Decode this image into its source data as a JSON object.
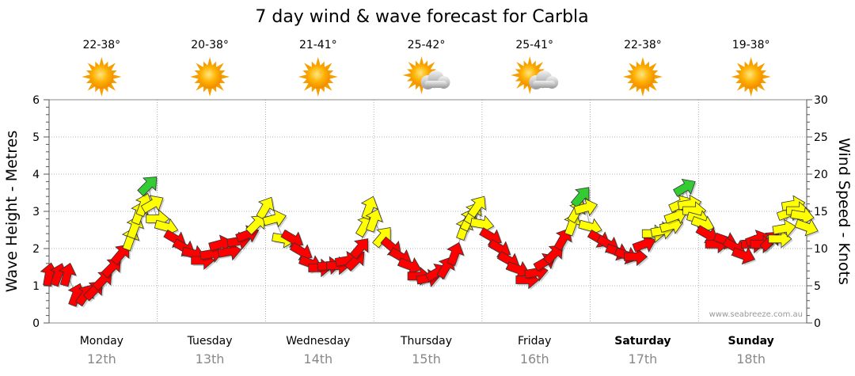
{
  "chart_data": {
    "type": "line",
    "title": "7 day wind & wave forecast for Carbla",
    "ylabel_left": "Wave Height - Metres",
    "ylabel_right": "Wind Speed - Knots",
    "ylim_left": [
      0,
      6
    ],
    "ylim_right": [
      0,
      30
    ],
    "yticks_left": [
      "0",
      "1",
      "2",
      "3",
      "4",
      "5",
      "6"
    ],
    "yticks_right": [
      "0",
      "5",
      "10",
      "15",
      "20",
      "25",
      "30"
    ],
    "credit": "www.seabreeze.com.au",
    "colors": {
      "calm": "#ffff00",
      "moderate": "#ff0000",
      "light": "#33cc33",
      "trace": "#aaaaaa"
    },
    "days": [
      {
        "label": "Monday",
        "date": "12th",
        "temp": "22-38°",
        "weather": "sunny",
        "weekend": false
      },
      {
        "label": "Tuesday",
        "date": "13th",
        "temp": "20-38°",
        "weather": "sunny",
        "weekend": false
      },
      {
        "label": "Wednesday",
        "date": "14th",
        "temp": "21-41°",
        "weather": "sunny",
        "weekend": false
      },
      {
        "label": "Thursday",
        "date": "15th",
        "temp": "25-42°",
        "weather": "partly-cloudy",
        "weekend": false
      },
      {
        "label": "Friday",
        "date": "16th",
        "temp": "25-41°",
        "weather": "partly-cloudy",
        "weekend": false
      },
      {
        "label": "Saturday",
        "date": "17th",
        "temp": "22-38°",
        "weather": "sunny",
        "weekend": true
      },
      {
        "label": "Sunday",
        "date": "18th",
        "temp": "19-38°",
        "weather": "sunny",
        "weekend": true
      }
    ],
    "wind_series": {
      "name": "Wind Speed",
      "points": [
        {
          "day": 0,
          "hour": 0,
          "speed": 6.5,
          "dir": 80,
          "color": "#ff0000"
        },
        {
          "day": 0,
          "hour": 2,
          "speed": 6.5,
          "dir": 70,
          "color": "#ff0000"
        },
        {
          "day": 0,
          "hour": 4,
          "speed": 6.5,
          "dir": 75,
          "color": "#ff0000"
        },
        {
          "day": 0,
          "hour": 6,
          "speed": 3.8,
          "dir": 70,
          "color": "#ff0000"
        },
        {
          "day": 0,
          "hour": 8,
          "speed": 3.8,
          "dir": 55,
          "color": "#ff0000"
        },
        {
          "day": 0,
          "hour": 10,
          "speed": 4.4,
          "dir": 45,
          "color": "#ff0000"
        },
        {
          "day": 0,
          "hour": 12,
          "speed": 5.8,
          "dir": 45,
          "color": "#ff0000"
        },
        {
          "day": 0,
          "hour": 14,
          "speed": 7.5,
          "dir": 45,
          "color": "#ff0000"
        },
        {
          "day": 0,
          "hour": 16,
          "speed": 9.3,
          "dir": 50,
          "color": "#ff0000"
        },
        {
          "day": 0,
          "hour": 18,
          "speed": 11.3,
          "dir": 70,
          "color": "#ffff00"
        },
        {
          "day": 0,
          "hour": 19,
          "speed": 12.9,
          "dir": 70,
          "color": "#ffff00"
        },
        {
          "day": 0,
          "hour": 20,
          "speed": 14.8,
          "dir": 70,
          "color": "#ffff00"
        },
        {
          "day": 0,
          "hour": 21,
          "speed": 15.9,
          "dir": 70,
          "color": "#ffff00"
        },
        {
          "day": 0,
          "hour": 22,
          "speed": 18.5,
          "dir": 45,
          "color": "#33cc33"
        },
        {
          "day": 0,
          "hour": 23,
          "speed": 16.0,
          "dir": 30,
          "color": "#ffff00"
        },
        {
          "day": 1,
          "hour": 0,
          "speed": 14.0,
          "dir": 0,
          "color": "#ffff00"
        },
        {
          "day": 1,
          "hour": 2,
          "speed": 12.9,
          "dir": 345,
          "color": "#ffff00"
        },
        {
          "day": 1,
          "hour": 4,
          "speed": 11.3,
          "dir": 330,
          "color": "#ff0000"
        },
        {
          "day": 1,
          "hour": 6,
          "speed": 10.1,
          "dir": 330,
          "color": "#ff0000"
        },
        {
          "day": 1,
          "hour": 8,
          "speed": 9.3,
          "dir": 345,
          "color": "#ff0000"
        },
        {
          "day": 1,
          "hour": 10,
          "speed": 8.4,
          "dir": 0,
          "color": "#ff0000"
        },
        {
          "day": 1,
          "hour": 12,
          "speed": 9.3,
          "dir": 10,
          "color": "#ff0000"
        },
        {
          "day": 1,
          "hour": 14,
          "speed": 10.6,
          "dir": 15,
          "color": "#ff0000"
        },
        {
          "day": 1,
          "hour": 16,
          "speed": 9.6,
          "dir": 10,
          "color": "#ff0000"
        },
        {
          "day": 1,
          "hour": 18,
          "speed": 11.0,
          "dir": 10,
          "color": "#ff0000"
        },
        {
          "day": 1,
          "hour": 20,
          "speed": 11.9,
          "dir": 20,
          "color": "#ff0000"
        },
        {
          "day": 1,
          "hour": 22,
          "speed": 13.3,
          "dir": 45,
          "color": "#ffff00"
        },
        {
          "day": 2,
          "hour": 0,
          "speed": 15.5,
          "dir": 60,
          "color": "#ffff00"
        },
        {
          "day": 2,
          "hour": 2,
          "speed": 14.0,
          "dir": 15,
          "color": "#ffff00"
        },
        {
          "day": 2,
          "hour": 4,
          "speed": 11.3,
          "dir": 350,
          "color": "#ffff00"
        },
        {
          "day": 2,
          "hour": 6,
          "speed": 11.3,
          "dir": 330,
          "color": "#ff0000"
        },
        {
          "day": 2,
          "hour": 8,
          "speed": 9.6,
          "dir": 330,
          "color": "#ff0000"
        },
        {
          "day": 2,
          "hour": 10,
          "speed": 8.0,
          "dir": 340,
          "color": "#ff0000"
        },
        {
          "day": 2,
          "hour": 12,
          "speed": 7.4,
          "dir": 0,
          "color": "#ff0000"
        },
        {
          "day": 2,
          "hour": 14,
          "speed": 7.7,
          "dir": 5,
          "color": "#ff0000"
        },
        {
          "day": 2,
          "hour": 16,
          "speed": 7.7,
          "dir": 0,
          "color": "#ff0000"
        },
        {
          "day": 2,
          "hour": 18,
          "speed": 8.4,
          "dir": 10,
          "color": "#ff0000"
        },
        {
          "day": 2,
          "hour": 20,
          "speed": 8.4,
          "dir": 45,
          "color": "#ff0000"
        },
        {
          "day": 2,
          "hour": 21,
          "speed": 10.1,
          "dir": 50,
          "color": "#ff0000"
        },
        {
          "day": 2,
          "hour": 22,
          "speed": 13.1,
          "dir": 60,
          "color": "#ffff00"
        },
        {
          "day": 2,
          "hour": 23,
          "speed": 15.5,
          "dir": 70,
          "color": "#ffff00"
        },
        {
          "day": 3,
          "hour": 0,
          "speed": 13.8,
          "dir": 70,
          "color": "#ffff00"
        },
        {
          "day": 3,
          "hour": 2,
          "speed": 11.6,
          "dir": 50,
          "color": "#ffff00"
        },
        {
          "day": 3,
          "hour": 4,
          "speed": 10.2,
          "dir": 320,
          "color": "#ff0000"
        },
        {
          "day": 3,
          "hour": 6,
          "speed": 8.9,
          "dir": 330,
          "color": "#ff0000"
        },
        {
          "day": 3,
          "hour": 8,
          "speed": 7.7,
          "dir": 340,
          "color": "#ff0000"
        },
        {
          "day": 3,
          "hour": 10,
          "speed": 6.3,
          "dir": 0,
          "color": "#ff0000"
        },
        {
          "day": 3,
          "hour": 12,
          "speed": 6.0,
          "dir": 10,
          "color": "#ff0000"
        },
        {
          "day": 3,
          "hour": 14,
          "speed": 6.8,
          "dir": 30,
          "color": "#ff0000"
        },
        {
          "day": 3,
          "hour": 16,
          "speed": 7.5,
          "dir": 60,
          "color": "#ff0000"
        },
        {
          "day": 3,
          "hour": 18,
          "speed": 9.3,
          "dir": 70,
          "color": "#ff0000"
        },
        {
          "day": 3,
          "hour": 20,
          "speed": 12.7,
          "dir": 70,
          "color": "#ffff00"
        },
        {
          "day": 3,
          "hour": 21,
          "speed": 13.9,
          "dir": 65,
          "color": "#ffff00"
        },
        {
          "day": 3,
          "hour": 22,
          "speed": 14.8,
          "dir": 60,
          "color": "#ffff00"
        },
        {
          "day": 3,
          "hour": 23,
          "speed": 15.7,
          "dir": 55,
          "color": "#ffff00"
        },
        {
          "day": 4,
          "hour": 0,
          "speed": 13.3,
          "dir": 350,
          "color": "#ffff00"
        },
        {
          "day": 4,
          "hour": 2,
          "speed": 11.6,
          "dir": 330,
          "color": "#ff0000"
        },
        {
          "day": 4,
          "hour": 4,
          "speed": 10.0,
          "dir": 330,
          "color": "#ff0000"
        },
        {
          "day": 4,
          "hour": 6,
          "speed": 8.4,
          "dir": 330,
          "color": "#ff0000"
        },
        {
          "day": 4,
          "hour": 8,
          "speed": 7.2,
          "dir": 340,
          "color": "#ff0000"
        },
        {
          "day": 4,
          "hour": 10,
          "speed": 5.8,
          "dir": 0,
          "color": "#ff0000"
        },
        {
          "day": 4,
          "hour": 12,
          "speed": 6.8,
          "dir": 10,
          "color": "#ff0000"
        },
        {
          "day": 4,
          "hour": 14,
          "speed": 8.2,
          "dir": 30,
          "color": "#ff0000"
        },
        {
          "day": 4,
          "hour": 16,
          "speed": 9.3,
          "dir": 45,
          "color": "#ff0000"
        },
        {
          "day": 4,
          "hour": 18,
          "speed": 11.3,
          "dir": 60,
          "color": "#ff0000"
        },
        {
          "day": 4,
          "hour": 20,
          "speed": 13.3,
          "dir": 70,
          "color": "#ffff00"
        },
        {
          "day": 4,
          "hour": 21,
          "speed": 15.0,
          "dir": 60,
          "color": "#ffff00"
        },
        {
          "day": 4,
          "hour": 22,
          "speed": 17.0,
          "dir": 50,
          "color": "#33cc33"
        },
        {
          "day": 4,
          "hour": 23,
          "speed": 15.5,
          "dir": 15,
          "color": "#ffff00"
        },
        {
          "day": 5,
          "hour": 0,
          "speed": 12.9,
          "dir": 345,
          "color": "#ffff00"
        },
        {
          "day": 5,
          "hour": 2,
          "speed": 11.3,
          "dir": 330,
          "color": "#ff0000"
        },
        {
          "day": 5,
          "hour": 4,
          "speed": 10.6,
          "dir": 330,
          "color": "#ff0000"
        },
        {
          "day": 5,
          "hour": 6,
          "speed": 9.6,
          "dir": 340,
          "color": "#ff0000"
        },
        {
          "day": 5,
          "hour": 8,
          "speed": 9.1,
          "dir": 340,
          "color": "#ff0000"
        },
        {
          "day": 5,
          "hour": 10,
          "speed": 8.9,
          "dir": 0,
          "color": "#ff0000"
        },
        {
          "day": 5,
          "hour": 12,
          "speed": 10.6,
          "dir": 20,
          "color": "#ff0000"
        },
        {
          "day": 5,
          "hour": 14,
          "speed": 12.0,
          "dir": 0,
          "color": "#ffff00"
        },
        {
          "day": 5,
          "hour": 16,
          "speed": 12.4,
          "dir": 10,
          "color": "#ffff00"
        },
        {
          "day": 5,
          "hour": 18,
          "speed": 13.1,
          "dir": 15,
          "color": "#ffff00"
        },
        {
          "day": 5,
          "hour": 19,
          "speed": 14.4,
          "dir": 20,
          "color": "#ffff00"
        },
        {
          "day": 5,
          "hour": 20,
          "speed": 16.0,
          "dir": 25,
          "color": "#ffff00"
        },
        {
          "day": 5,
          "hour": 21,
          "speed": 18.2,
          "dir": 30,
          "color": "#33cc33"
        },
        {
          "day": 5,
          "hour": 22,
          "speed": 16.0,
          "dir": 10,
          "color": "#ffff00"
        },
        {
          "day": 5,
          "hour": 23,
          "speed": 15.1,
          "dir": 0,
          "color": "#ffff00"
        },
        {
          "day": 6,
          "hour": 0,
          "speed": 14.0,
          "dir": 345,
          "color": "#ffff00"
        },
        {
          "day": 6,
          "hour": 1,
          "speed": 13.3,
          "dir": 340,
          "color": "#ffff00"
        },
        {
          "day": 6,
          "hour": 2,
          "speed": 11.9,
          "dir": 330,
          "color": "#ff0000"
        },
        {
          "day": 6,
          "hour": 4,
          "speed": 10.6,
          "dir": 0,
          "color": "#ff0000"
        },
        {
          "day": 6,
          "hour": 6,
          "speed": 11.1,
          "dir": 340,
          "color": "#ff0000"
        },
        {
          "day": 6,
          "hour": 8,
          "speed": 10.2,
          "dir": 330,
          "color": "#ff0000"
        },
        {
          "day": 6,
          "hour": 10,
          "speed": 9.1,
          "dir": 340,
          "color": "#ff0000"
        },
        {
          "day": 6,
          "hour": 12,
          "speed": 10.6,
          "dir": 0,
          "color": "#ff0000"
        },
        {
          "day": 6,
          "hour": 13,
          "speed": 11.3,
          "dir": 20,
          "color": "#ff0000"
        },
        {
          "day": 6,
          "hour": 14,
          "speed": 10.6,
          "dir": 0,
          "color": "#ff0000"
        },
        {
          "day": 6,
          "hour": 16,
          "speed": 11.1,
          "dir": 45,
          "color": "#ff0000"
        },
        {
          "day": 6,
          "hour": 18,
          "speed": 11.3,
          "dir": 0,
          "color": "#ffff00"
        },
        {
          "day": 6,
          "hour": 19,
          "speed": 12.7,
          "dir": 10,
          "color": "#ffff00"
        },
        {
          "day": 6,
          "hour": 20,
          "speed": 14.8,
          "dir": 20,
          "color": "#ffff00"
        },
        {
          "day": 6,
          "hour": 21,
          "speed": 15.9,
          "dir": 10,
          "color": "#ffff00"
        },
        {
          "day": 6,
          "hour": 22,
          "speed": 15.1,
          "dir": 0,
          "color": "#ffff00"
        },
        {
          "day": 6,
          "hour": 23,
          "speed": 14.4,
          "dir": 350,
          "color": "#ffff00"
        },
        {
          "day": 6,
          "hour": 24,
          "speed": 12.9,
          "dir": 340,
          "color": "#ffff00"
        }
      ]
    }
  }
}
